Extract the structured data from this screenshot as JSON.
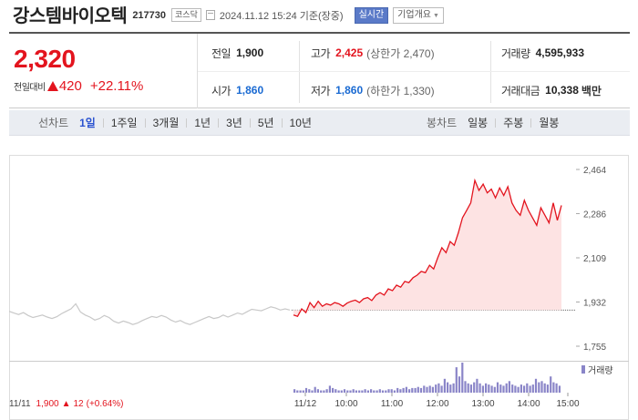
{
  "header": {
    "name": "강스템바이오텍",
    "code": "217730",
    "market": "코스닥",
    "datetime": "2024.11.12 15:24 기준(장중)",
    "realtime_btn": "실시간",
    "company_btn": "기업개요"
  },
  "summary": {
    "price": "2,320",
    "change_label": "전일대비",
    "change": "420",
    "change_pct": "+22.11%",
    "prev_label": "전일",
    "prev": "1,900",
    "high_label": "고가",
    "high": "2,425",
    "upper_limit": "(상한가 2,470)",
    "volume_label": "거래량",
    "volume": "4,595,933",
    "open_label": "시가",
    "open": "1,860",
    "low_label": "저가",
    "low": "1,860",
    "lower_limit": "(하한가 1,330)",
    "amount_label": "거래대금",
    "amount": "10,338",
    "amount_unit": "백만"
  },
  "period_bar": {
    "line_title": "선차트",
    "line_options": [
      "1일",
      "1주일",
      "3개월",
      "1년",
      "3년",
      "5년",
      "10년"
    ],
    "active": "1일",
    "candle_title": "봉차트",
    "candle_options": [
      "일봉",
      "주봉",
      "월봉"
    ]
  },
  "colors": {
    "up": "#e3141e",
    "down": "#1a6ad2",
    "accent": "#2b53d0"
  },
  "chart_data": {
    "type": "line",
    "y_ticks": [
      "2,464",
      "2,286",
      "2,109",
      "1,932",
      "1,755"
    ],
    "ylim": [
      1755,
      2464
    ],
    "reference_line": 1900,
    "x_ticks": [
      "11/11",
      "11/12",
      "10:00",
      "11:00",
      "12:00",
      "13:00",
      "14:00",
      "15:00"
    ],
    "prev_day_caption": "11/11",
    "prev_day_close": "1,900",
    "prev_day_change": "12",
    "prev_day_change_pct": "(+0.64%)",
    "volume_legend": "거래량",
    "series": [
      {
        "name": "11/11",
        "values": [
          1895,
          1888,
          1882,
          1890,
          1878,
          1870,
          1875,
          1880,
          1872,
          1866,
          1873,
          1885,
          1895,
          1905,
          1925,
          1892,
          1880,
          1872,
          1860,
          1866,
          1878,
          1870,
          1855,
          1848,
          1856,
          1850,
          1842,
          1848,
          1858,
          1866,
          1874,
          1870,
          1878,
          1872,
          1860,
          1852,
          1858,
          1848,
          1842,
          1850,
          1858,
          1866,
          1874,
          1866,
          1870,
          1880,
          1872,
          1880,
          1888,
          1883,
          1893,
          1903,
          1900,
          1897,
          1905,
          1913,
          1908,
          1900,
          1905,
          1900
        ]
      },
      {
        "name": "11/12",
        "values": [
          1880,
          1875,
          1905,
          1890,
          1930,
          1910,
          1935,
          1915,
          1925,
          1920,
          1930,
          1925,
          1915,
          1928,
          1935,
          1940,
          1930,
          1945,
          1950,
          1938,
          1960,
          1970,
          1960,
          1985,
          1978,
          2000,
          1992,
          2015,
          2010,
          2030,
          2040,
          2055,
          2050,
          2080,
          2065,
          2110,
          2150,
          2130,
          2175,
          2160,
          2210,
          2270,
          2300,
          2330,
          2420,
          2380,
          2405,
          2370,
          2385,
          2350,
          2390,
          2360,
          2395,
          2330,
          2300,
          2280,
          2340,
          2300,
          2270,
          2240,
          2310,
          2280,
          2250,
          2330,
          2260,
          2320
        ]
      }
    ],
    "volume": [
      3,
      2,
      2,
      2,
      4,
      3,
      2,
      5,
      3,
      2,
      2,
      3,
      6,
      4,
      3,
      2,
      2,
      3,
      2,
      2,
      3,
      2,
      2,
      2,
      3,
      2,
      3,
      2,
      2,
      3,
      2,
      2,
      3,
      3,
      2,
      4,
      3,
      4,
      5,
      3,
      4,
      4,
      5,
      4,
      6,
      5,
      6,
      5,
      7,
      8,
      6,
      12,
      9,
      7,
      8,
      22,
      14,
      26,
      10,
      8,
      7,
      9,
      12,
      8,
      6,
      8,
      7,
      6,
      5,
      9,
      7,
      6,
      8,
      10,
      7,
      6,
      5,
      7,
      6,
      8,
      6,
      7,
      12,
      9,
      10,
      8,
      7,
      14,
      9,
      8,
      6
    ]
  }
}
